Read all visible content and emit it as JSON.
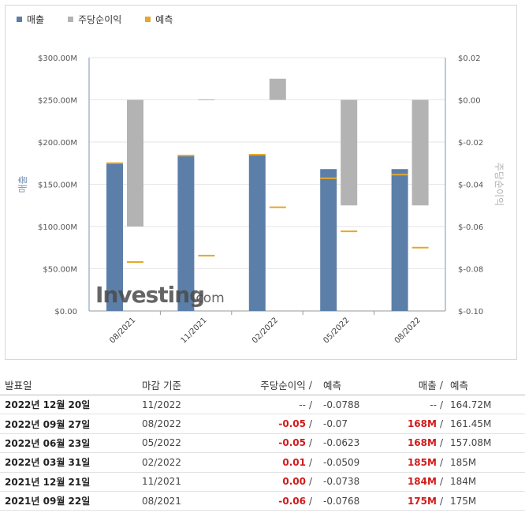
{
  "legend": {
    "revenue": "매출",
    "eps": "주당순이익",
    "forecast": "예측"
  },
  "colors": {
    "revenue": "#5b7fa8",
    "eps": "#b3b3b3",
    "forecast": "#e6a72a",
    "axis": "#7a96b7",
    "grid": "#e6e6e6",
    "negative": "#d11a1a"
  },
  "chart_data": {
    "type": "bar",
    "categories": [
      "08/2021",
      "11/2021",
      "02/2022",
      "05/2022",
      "08/2022"
    ],
    "ylabel_left": "매출",
    "ylabel_right": "주당순이익",
    "left_axis": {
      "range": [
        0,
        300
      ],
      "ticks": [
        "$0.00",
        "$50.00M",
        "$100.00M",
        "$150.00M",
        "$200.00M",
        "$250.00M",
        "$300.00M"
      ]
    },
    "right_axis": {
      "range": [
        -0.1,
        0.02
      ],
      "ticks": [
        "$-0.10",
        "$-0.08",
        "$-0.06",
        "$-0.04",
        "$-0.02",
        "$0.00",
        "$0.02"
      ]
    },
    "series": [
      {
        "name": "매출",
        "values": [
          175,
          184,
          185,
          168,
          168
        ]
      },
      {
        "name": "예측 (매출)",
        "values": [
          175,
          184,
          185,
          157.08,
          161.45
        ]
      },
      {
        "name": "주당순이익",
        "values": [
          -0.06,
          0.0,
          0.01,
          -0.05,
          -0.05
        ]
      },
      {
        "name": "예측 (주당순이익)",
        "values": [
          -0.0768,
          -0.0738,
          -0.0509,
          -0.0623,
          -0.07
        ]
      }
    ],
    "grid": true,
    "watermark": {
      "brand": "Investing",
      "suffix": ".com"
    }
  },
  "table": {
    "headers": {
      "date": "발표일",
      "period": "마감 기준",
      "eps": "주당순이익",
      "eps_forecast": "예측",
      "revenue": "매출",
      "revenue_forecast": "예측",
      "slash": "/"
    },
    "rows": [
      {
        "date": "2022년 12월 20일",
        "period": "11/2022",
        "eps": "--",
        "eps_forecast": "-0.0788",
        "revenue": "--",
        "revenue_forecast": "164.72M"
      },
      {
        "date": "2022년 09월 27일",
        "period": "08/2022",
        "eps": "-0.05",
        "eps_forecast": "-0.07",
        "revenue": "168M",
        "revenue_forecast": "161.45M"
      },
      {
        "date": "2022년 06월 23일",
        "period": "05/2022",
        "eps": "-0.05",
        "eps_forecast": "-0.0623",
        "revenue": "168M",
        "revenue_forecast": "157.08M"
      },
      {
        "date": "2022년 03월 31일",
        "period": "02/2022",
        "eps": "0.01",
        "eps_forecast": "-0.0509",
        "revenue": "185M",
        "revenue_forecast": "185M"
      },
      {
        "date": "2021년 12월 21일",
        "period": "11/2021",
        "eps": "0.00",
        "eps_forecast": "-0.0738",
        "revenue": "184M",
        "revenue_forecast": "184M"
      },
      {
        "date": "2021년 09월 22일",
        "period": "08/2021",
        "eps": "-0.06",
        "eps_forecast": "-0.0768",
        "revenue": "175M",
        "revenue_forecast": "175M"
      }
    ]
  }
}
